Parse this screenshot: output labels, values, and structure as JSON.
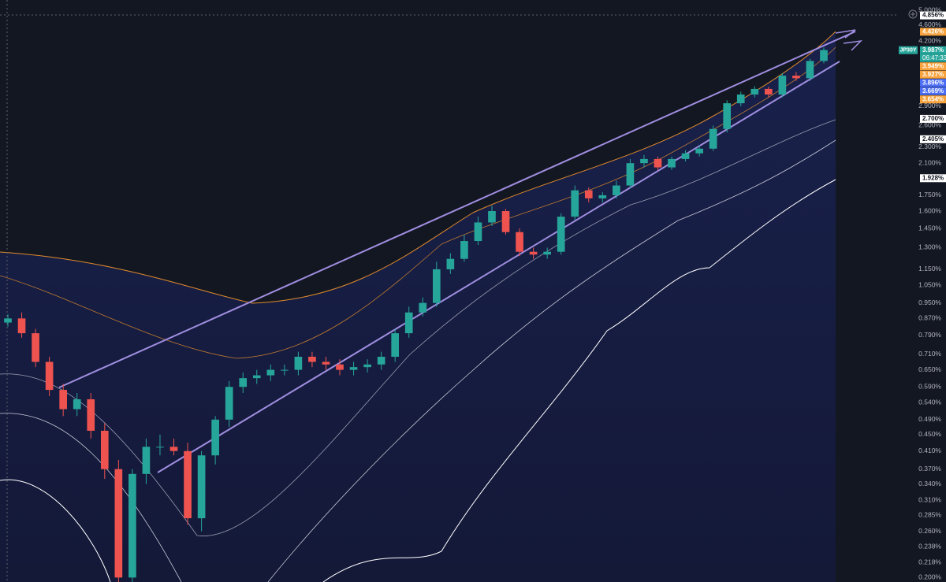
{
  "chart_data": {
    "type": "candlestick",
    "symbol": "JP30Y",
    "log_scale": true,
    "grid": false,
    "up_color": "#26a69a",
    "down_color": "#ef5350",
    "ylim": [
      0.195,
      5.3
    ],
    "yticks": [
      {
        "value": 5.0,
        "label": "5.000%"
      },
      {
        "value": 4.6,
        "label": "4.600%"
      },
      {
        "value": 4.2,
        "label": "4.200%"
      },
      {
        "value": 2.9,
        "label": "2.900%"
      },
      {
        "value": 2.6,
        "label": "2.600%"
      },
      {
        "value": 2.3,
        "label": "2.300%"
      },
      {
        "value": 2.1,
        "label": "2.100%"
      },
      {
        "value": 1.75,
        "label": "1.750%"
      },
      {
        "value": 1.6,
        "label": "1.600%"
      },
      {
        "value": 1.45,
        "label": "1.450%"
      },
      {
        "value": 1.3,
        "label": "1.300%"
      },
      {
        "value": 1.15,
        "label": "1.150%"
      },
      {
        "value": 1.05,
        "label": "1.050%"
      },
      {
        "value": 0.95,
        "label": "0.950%"
      },
      {
        "value": 0.87,
        "label": "0.870%"
      },
      {
        "value": 0.79,
        "label": "0.790%"
      },
      {
        "value": 0.71,
        "label": "0.710%"
      },
      {
        "value": 0.65,
        "label": "0.650%"
      },
      {
        "value": 0.59,
        "label": "0.590%"
      },
      {
        "value": 0.54,
        "label": "0.540%"
      },
      {
        "value": 0.49,
        "label": "0.490%"
      },
      {
        "value": 0.45,
        "label": "0.450%"
      },
      {
        "value": 0.41,
        "label": "0.410%"
      },
      {
        "value": 0.37,
        "label": "0.370%"
      },
      {
        "value": 0.34,
        "label": "0.340%"
      },
      {
        "value": 0.31,
        "label": "0.310%"
      },
      {
        "value": 0.285,
        "label": "0.285%"
      },
      {
        "value": 0.26,
        "label": "0.260%"
      },
      {
        "value": 0.238,
        "label": "0.238%"
      },
      {
        "value": 0.218,
        "label": "0.218%"
      },
      {
        "value": 0.2,
        "label": "0.200%"
      }
    ],
    "open": [
      0.85,
      0.87,
      0.8,
      0.68,
      0.58,
      0.52,
      0.55,
      0.46,
      0.37,
      0.2,
      0.36,
      0.42,
      0.42,
      0.41,
      0.28,
      0.4,
      0.49,
      0.59,
      0.62,
      0.63,
      0.65,
      0.65,
      0.7,
      0.68,
      0.67,
      0.65,
      0.66,
      0.67,
      0.7,
      0.8,
      0.9,
      0.95,
      1.15,
      1.22,
      1.35,
      1.5,
      1.6,
      1.42,
      1.27,
      1.25,
      1.27,
      1.55,
      1.8,
      1.72,
      1.75,
      1.85,
      2.1,
      2.15,
      2.05,
      2.15,
      2.22,
      2.28,
      2.55,
      2.95,
      3.1,
      3.2,
      3.1,
      3.45,
      3.4,
      3.75
    ],
    "high": [
      0.89,
      0.9,
      0.82,
      0.7,
      0.6,
      0.57,
      0.57,
      0.48,
      0.39,
      0.37,
      0.44,
      0.45,
      0.44,
      0.43,
      0.41,
      0.5,
      0.61,
      0.64,
      0.65,
      0.67,
      0.67,
      0.72,
      0.72,
      0.7,
      0.69,
      0.68,
      0.69,
      0.72,
      0.82,
      0.93,
      0.98,
      1.2,
      1.26,
      1.4,
      1.55,
      1.65,
      1.62,
      1.45,
      1.3,
      1.3,
      1.58,
      1.85,
      1.83,
      1.78,
      1.9,
      2.15,
      2.2,
      2.18,
      2.18,
      2.26,
      2.32,
      2.6,
      3.0,
      3.15,
      3.25,
      3.24,
      3.5,
      3.52,
      3.8,
      4.05
    ],
    "low": [
      0.83,
      0.78,
      0.66,
      0.56,
      0.5,
      0.5,
      0.44,
      0.35,
      0.19,
      0.19,
      0.34,
      0.4,
      0.4,
      0.27,
      0.26,
      0.38,
      0.47,
      0.57,
      0.6,
      0.61,
      0.63,
      0.63,
      0.66,
      0.65,
      0.63,
      0.63,
      0.64,
      0.65,
      0.68,
      0.78,
      0.88,
      0.93,
      1.12,
      1.2,
      1.32,
      1.47,
      1.4,
      1.24,
      1.22,
      1.22,
      1.25,
      1.52,
      1.68,
      1.68,
      1.72,
      1.82,
      2.05,
      2.02,
      2.02,
      2.12,
      2.18,
      2.25,
      2.5,
      2.9,
      3.05,
      3.05,
      3.05,
      3.35,
      3.35,
      3.7
    ],
    "close": [
      0.87,
      0.8,
      0.68,
      0.58,
      0.52,
      0.55,
      0.46,
      0.37,
      0.2,
      0.36,
      0.42,
      0.42,
      0.41,
      0.28,
      0.4,
      0.49,
      0.59,
      0.62,
      0.63,
      0.65,
      0.65,
      0.7,
      0.68,
      0.67,
      0.65,
      0.66,
      0.67,
      0.7,
      0.8,
      0.9,
      0.95,
      1.15,
      1.22,
      1.35,
      1.5,
      1.6,
      1.42,
      1.27,
      1.25,
      1.27,
      1.55,
      1.8,
      1.72,
      1.75,
      1.85,
      2.1,
      2.15,
      2.05,
      2.15,
      2.22,
      2.28,
      2.55,
      2.95,
      3.1,
      3.2,
      3.1,
      3.45,
      3.4,
      3.75,
      3.99
    ],
    "price_labels": [
      {
        "value": 4.856,
        "label": "4.856%",
        "color": "#ffffff"
      },
      {
        "value": 4.426,
        "label": "4.426%",
        "color": "#f7a23c"
      },
      {
        "value": 3.987,
        "label": "3.987%",
        "color": "#26a69a",
        "countdown": "06:47:33"
      },
      {
        "value": 3.949,
        "label": "3.949%",
        "color": "#f7a23c"
      },
      {
        "value": 3.927,
        "label": "3.927%",
        "color": "#f7a23c"
      },
      {
        "value": 3.896,
        "label": "3.896%",
        "color": "#4c6ef5"
      },
      {
        "value": 3.669,
        "label": "3.669%",
        "color": "#4c6ef5"
      },
      {
        "value": 3.654,
        "label": "3.654%",
        "color": "#f7a23c"
      },
      {
        "value": 2.7,
        "label": "2.700%",
        "color": "#ffffff"
      },
      {
        "value": 2.405,
        "label": "2.405%",
        "color": "#ffffff"
      },
      {
        "value": 1.928,
        "label": "1.928%",
        "color": "#ffffff"
      }
    ]
  }
}
